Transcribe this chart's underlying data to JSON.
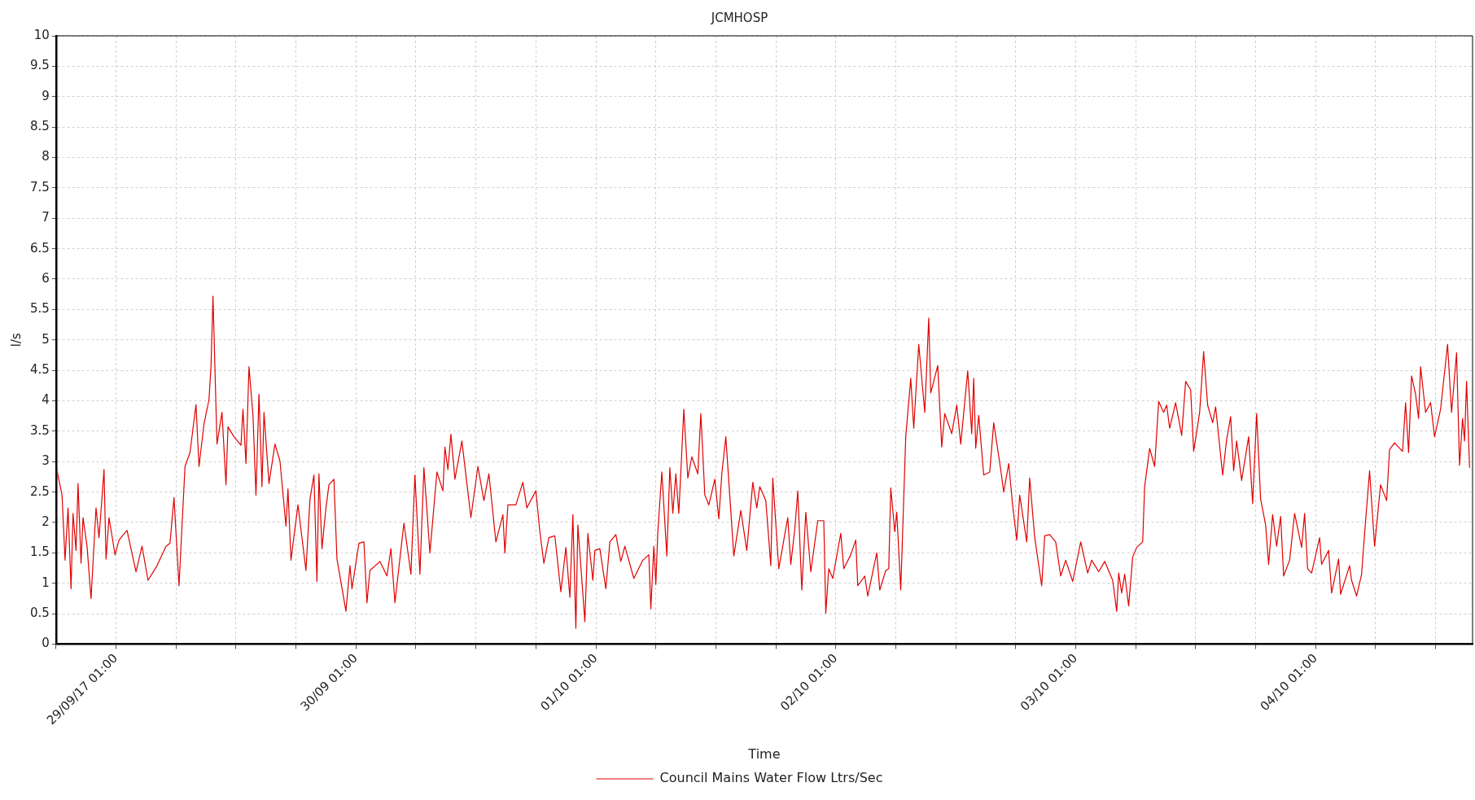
{
  "chart_data": {
    "type": "line",
    "title": "JCMHOSP",
    "xlabel": "Time",
    "ylabel": "l/s",
    "xlim": [
      "--09-28T19:00",
      "--10-04T16:42"
    ],
    "ylim": [
      0,
      10
    ],
    "xticks": [
      {
        "value": "--09-28T19:00",
        "label": null
      },
      {
        "value": "--09-29T01:00",
        "label": "29/09/17 01:00"
      },
      {
        "value": "--09-29T07:00",
        "label": null
      },
      {
        "value": "--09-29T13:00",
        "label": null
      },
      {
        "value": "--09-29T19:00",
        "label": null
      },
      {
        "value": "--09-30T01:00",
        "label": "30/09 01:00"
      },
      {
        "value": "--09-30T07:00",
        "label": null
      },
      {
        "value": "--09-30T13:00",
        "label": null
      },
      {
        "value": "--09-30T19:00",
        "label": null
      },
      {
        "value": "--10-01T01:00",
        "label": "01/10 01:00"
      },
      {
        "value": "--10-01T07:00",
        "label": null
      },
      {
        "value": "--10-01T13:00",
        "label": null
      },
      {
        "value": "--10-01T19:00",
        "label": null
      },
      {
        "value": "--10-02T01:00",
        "label": "02/10 01:00"
      },
      {
        "value": "--10-02T07:00",
        "label": null
      },
      {
        "value": "--10-02T13:00",
        "label": null
      },
      {
        "value": "--10-02T19:00",
        "label": null
      },
      {
        "value": "--10-03T01:00",
        "label": "03/10 01:00"
      },
      {
        "value": "--10-03T07:00",
        "label": null
      },
      {
        "value": "--10-03T13:00",
        "label": null
      },
      {
        "value": "--10-03T19:00",
        "label": null
      },
      {
        "value": "--10-04T01:00",
        "label": "04/10 01:00"
      },
      {
        "value": "--10-04T07:00",
        "label": null
      },
      {
        "value": "--10-04T13:00",
        "label": null
      }
    ],
    "yticks": [
      0,
      0.5,
      1,
      1.5,
      2,
      2.5,
      3,
      3.5,
      4,
      4.5,
      5,
      5.5,
      6,
      6.5,
      7,
      7.5,
      8,
      8.5,
      9,
      9.5,
      10
    ],
    "grid": true,
    "legend": "bottom",
    "series": [
      {
        "name": "Council Mains Water Flow Ltrs/Sec",
        "color": "#e00000",
        "x": [
          "--09-28T19:06",
          "--09-28T19:36",
          "--09-28T19:54",
          "--09-28T20:12",
          "--09-28T20:30",
          "--09-28T20:42",
          "--09-28T21:00",
          "--09-28T21:12",
          "--09-28T21:30",
          "--09-28T21:42",
          "--09-28T22:06",
          "--09-28T22:30",
          "--09-28T23:00",
          "--09-28T23:18",
          "--09-28T23:48",
          "--09-29T00:00",
          "--09-29T00:18",
          "--09-29T00:54",
          "--09-29T01:18",
          "--09-29T02:06",
          "--09-29T03:00",
          "--09-29T03:36",
          "--09-29T04:12",
          "--09-29T05:06",
          "--09-29T06:00",
          "--09-29T06:24",
          "--09-29T06:48",
          "--09-29T07:18",
          "--09-29T07:54",
          "--09-29T08:24",
          "--09-29T09:00",
          "--09-29T09:18",
          "--09-29T09:48",
          "--09-29T10:18",
          "--09-29T10:30",
          "--09-29T10:42",
          "--09-29T11:06",
          "--09-29T11:36",
          "--09-29T12:00",
          "--09-29T12:12",
          "--09-29T12:48",
          "--09-29T13:30",
          "--09-29T13:42",
          "--09-29T14:00",
          "--09-29T14:18",
          "--09-29T14:42",
          "--09-29T15:00",
          "--09-29T15:18",
          "--09-29T15:36",
          "--09-29T15:48",
          "--09-29T16:18",
          "--09-29T16:54",
          "--09-29T17:24",
          "--09-29T18:00",
          "--09-29T18:12",
          "--09-29T18:30",
          "--09-29T19:12",
          "--09-29T20:00",
          "--09-29T20:24",
          "--09-29T20:48",
          "--09-29T21:06",
          "--09-29T21:18",
          "--09-29T21:36",
          "--09-29T22:00",
          "--09-29T22:18",
          "--09-29T22:48",
          "--09-29T23:06",
          "--09-30T00:00",
          "--09-30T00:24",
          "--09-30T00:36",
          "--09-30T01:18",
          "--09-30T01:48",
          "--09-30T02:06",
          "--09-30T02:24",
          "--09-30T03:24",
          "--09-30T04:06",
          "--09-30T04:30",
          "--09-30T04:54",
          "--09-30T05:48",
          "--09-30T06:30",
          "--09-30T06:54",
          "--09-30T07:24",
          "--09-30T07:48",
          "--09-30T08:24",
          "--09-30T09:06",
          "--09-30T09:42",
          "--09-30T09:54",
          "--09-30T10:12",
          "--09-30T10:30",
          "--09-30T10:54",
          "--09-30T11:36",
          "--09-30T12:30",
          "--09-30T13:12",
          "--09-30T13:48",
          "--09-30T14:18",
          "--09-30T15:00",
          "--09-30T15:42",
          "--09-30T15:54",
          "--09-30T16:12",
          "--09-30T17:00",
          "--09-30T17:42",
          "--09-30T18:06",
          "--09-30T19:00",
          "--09-30T19:24",
          "--09-30T19:48",
          "--09-30T20:18",
          "--09-30T20:54",
          "--09-30T21:30",
          "--09-30T22:00",
          "--09-30T22:24",
          "--09-30T22:42",
          "--09-30T23:00",
          "--09-30T23:12",
          "--09-30T23:54",
          "--10-01T00:12",
          "--10-01T00:42",
          "--10-01T00:54",
          "--10-01T01:24",
          "--10-01T02:00",
          "--10-01T02:24",
          "--10-01T03:00",
          "--10-01T03:30",
          "--10-01T03:54",
          "--10-01T04:48",
          "--10-01T05:42",
          "--10-01T06:18",
          "--10-01T06:30",
          "--10-01T06:48",
          "--10-01T07:00",
          "--10-01T07:12",
          "--10-01T07:36",
          "--10-01T08:06",
          "--10-01T08:24",
          "--10-01T08:42",
          "--10-01T09:00",
          "--10-01T09:18",
          "--10-01T09:48",
          "--10-01T10:12",
          "--10-01T10:36",
          "--10-01T11:12",
          "--10-01T11:30",
          "--10-01T11:54",
          "--10-01T12:18",
          "--10-01T12:54",
          "--10-01T13:18",
          "--10-01T13:36",
          "--10-01T14:00",
          "--10-01T14:48",
          "--10-01T15:30",
          "--10-01T16:06",
          "--10-01T16:42",
          "--10-01T17:06",
          "--10-01T17:24",
          "--10-01T18:00",
          "--10-01T18:30",
          "--10-01T18:42",
          "--10-01T19:18",
          "--10-01T19:48",
          "--10-01T20:12",
          "--10-01T20:30",
          "--10-01T20:54",
          "--10-01T21:12",
          "--10-01T21:36",
          "--10-01T22:00",
          "--10-01T22:30",
          "--10-01T23:12",
          "--10-01T23:48",
          "--10-02T00:00",
          "--10-02T00:18",
          "--10-02T00:42",
          "--10-02T01:30",
          "--10-02T01:48",
          "--10-02T02:30",
          "--10-02T03:00",
          "--10-02T03:12",
          "--10-02T03:54",
          "--10-02T04:12",
          "--10-02T05:06",
          "--10-02T05:24",
          "--10-02T06:00",
          "--10-02T06:18",
          "--10-02T06:30",
          "--10-02T06:54",
          "--10-02T07:06",
          "--10-02T07:30",
          "--10-02T08:00",
          "--10-02T08:30",
          "--10-02T08:48",
          "--10-02T09:18",
          "--10-02T09:54",
          "--10-02T10:18",
          "--10-02T10:30",
          "--10-02T11:12",
          "--10-02T11:36",
          "--10-02T11:54",
          "--10-02T12:36",
          "--10-02T13:06",
          "--10-02T13:30",
          "--10-02T14:12",
          "--10-02T14:36",
          "--10-02T14:48",
          "--10-02T15:00",
          "--10-02T15:18",
          "--10-02T15:48",
          "--10-02T16:24",
          "--10-02T16:48",
          "--10-02T17:30",
          "--10-02T17:48",
          "--10-02T18:18",
          "--10-02T18:42",
          "--10-02T19:06",
          "--10-02T19:24",
          "--10-02T20:06",
          "--10-02T20:24",
          "--10-02T20:54",
          "--10-02T21:36",
          "--10-02T21:54",
          "--10-02T22:24",
          "--10-02T23:00",
          "--10-02T23:30",
          "--10-03T00:00",
          "--10-03T00:42",
          "--10-03T01:30",
          "--10-03T02:12",
          "--10-03T02:36",
          "--10-03T03:18",
          "--10-03T03:54",
          "--10-03T04:42",
          "--10-03T05:06",
          "--10-03T05:18",
          "--10-03T05:36",
          "--10-03T05:54",
          "--10-03T06:18",
          "--10-03T06:42",
          "--10-03T07:06",
          "--10-03T07:42",
          "--10-03T07:54",
          "--10-03T08:24",
          "--10-03T08:54",
          "--10-03T09:18",
          "--10-03T09:48",
          "--10-03T10:06",
          "--10-03T10:24",
          "--10-03T11:00",
          "--10-03T11:36",
          "--10-03T12:00",
          "--10-03T12:30",
          "--10-03T12:48",
          "--10-03T13:24",
          "--10-03T13:48",
          "--10-03T14:12",
          "--10-03T14:42",
          "--10-03T15:00",
          "--10-03T15:42",
          "--10-03T16:06",
          "--10-03T16:30",
          "--10-03T16:48",
          "--10-03T17:06",
          "--10-03T17:36",
          "--10-03T18:18",
          "--10-03T18:42",
          "--10-03T19:06",
          "--10-03T19:30",
          "--10-03T20:00",
          "--10-03T20:18",
          "--10-03T20:42",
          "--10-03T21:06",
          "--10-03T21:30",
          "--10-03T21:48",
          "--10-03T22:24",
          "--10-03T22:54",
          "--10-03T23:36",
          "--10-03T23:54",
          "--10-04T00:12",
          "--10-04T00:36",
          "--10-04T01:24",
          "--10-04T01:36",
          "--10-04T02:18",
          "--10-04T02:36",
          "--10-04T03:18",
          "--10-04T03:30",
          "--10-04T04:24",
          "--10-04T04:36",
          "--10-04T05:06",
          "--10-04T05:36",
          "--10-04T05:54",
          "--10-04T06:24",
          "--10-04T06:54",
          "--10-04T07:30",
          "--10-04T08:06",
          "--10-04T08:24",
          "--10-04T08:54",
          "--10-04T09:42",
          "--10-04T10:00",
          "--10-04T10:18",
          "--10-04T10:36",
          "--10-04T11:00",
          "--10-04T11:18",
          "--10-04T11:30",
          "--10-04T12:00",
          "--10-04T12:30",
          "--10-04T12:54",
          "--10-04T13:30",
          "--10-04T14:12",
          "--10-04T14:36",
          "--10-04T15:06",
          "--10-04T15:24",
          "--10-04T15:42",
          "--10-04T15:54",
          "--10-04T16:06",
          "--10-04T16:24"
        ],
        "values": [
          2.85,
          2.45,
          1.38,
          2.24,
          0.91,
          2.15,
          1.54,
          2.64,
          1.33,
          2.08,
          1.61,
          0.75,
          2.24,
          1.75,
          2.87,
          1.4,
          2.08,
          1.47,
          1.71,
          1.87,
          1.19,
          1.61,
          1.05,
          1.29,
          1.61,
          1.66,
          2.41,
          0.96,
          2.92,
          3.15,
          3.94,
          2.92,
          3.62,
          4.02,
          4.56,
          5.72,
          3.29,
          3.81,
          2.62,
          3.57,
          3.41,
          3.27,
          3.86,
          2.97,
          4.56,
          3.76,
          2.45,
          4.11,
          2.59,
          3.81,
          2.64,
          3.29,
          3.01,
          1.94,
          2.55,
          1.38,
          2.29,
          1.21,
          2.38,
          2.78,
          1.03,
          2.8,
          1.57,
          2.24,
          2.62,
          2.71,
          1.4,
          0.54,
          1.29,
          0.91,
          1.66,
          1.68,
          0.68,
          1.21,
          1.36,
          1.12,
          1.57,
          0.68,
          1.99,
          1.15,
          2.78,
          1.15,
          2.9,
          1.5,
          2.83,
          2.52,
          3.24,
          2.87,
          3.45,
          2.71,
          3.34,
          2.08,
          2.92,
          2.36,
          2.8,
          1.68,
          2.13,
          1.5,
          2.29,
          2.29,
          2.66,
          2.24,
          2.52,
          1.85,
          1.33,
          1.75,
          1.78,
          0.86,
          1.59,
          0.77,
          2.13,
          0.26,
          1.96,
          0.37,
          1.82,
          1.05,
          1.54,
          1.57,
          0.91,
          1.68,
          1.8,
          1.36,
          1.61,
          1.08,
          1.38,
          1.47,
          0.58,
          1.61,
          0.98,
          1.85,
          2.83,
          1.45,
          2.9,
          2.15,
          2.8,
          2.15,
          3.86,
          2.73,
          3.08,
          2.8,
          3.79,
          2.45,
          2.29,
          2.71,
          2.06,
          2.8,
          3.41,
          1.45,
          2.2,
          1.54,
          2.66,
          2.24,
          2.59,
          2.36,
          1.29,
          2.73,
          1.24,
          1.71,
          2.08,
          1.31,
          1.89,
          2.52,
          0.89,
          2.17,
          1.19,
          2.03,
          2.03,
          0.51,
          1.24,
          1.08,
          1.82,
          1.24,
          1.47,
          1.71,
          0.96,
          1.12,
          0.79,
          1.5,
          0.89,
          1.21,
          1.24,
          2.57,
          1.85,
          2.17,
          0.89,
          3.41,
          4.37,
          3.55,
          4.93,
          3.81,
          5.36,
          4.13,
          4.58,
          3.24,
          3.79,
          3.46,
          3.93,
          3.29,
          4.49,
          3.46,
          4.37,
          3.22,
          3.76,
          2.78,
          2.83,
          3.64,
          2.87,
          2.5,
          2.97,
          2.27,
          1.71,
          2.45,
          1.68,
          2.73,
          1.75,
          0.96,
          1.78,
          1.8,
          1.68,
          1.12,
          1.38,
          1.03,
          1.68,
          1.17,
          1.38,
          1.19,
          1.36,
          1.05,
          0.54,
          1.17,
          0.84,
          1.15,
          0.63,
          1.43,
          1.59,
          1.68,
          2.59,
          3.22,
          2.92,
          3.99,
          3.81,
          3.93,
          3.55,
          3.97,
          3.43,
          4.32,
          4.18,
          3.17,
          3.81,
          4.81,
          3.93,
          3.64,
          3.9,
          2.78,
          3.36,
          3.74,
          2.85,
          3.34,
          2.69,
          3.41,
          2.31,
          3.79,
          2.38,
          1.96,
          1.31,
          2.13,
          1.61,
          2.1,
          1.12,
          1.38,
          2.15,
          1.59,
          2.15,
          1.24,
          1.17,
          1.75,
          1.31,
          1.54,
          0.84,
          1.4,
          0.82,
          1.29,
          1.05,
          0.79,
          1.15,
          1.82,
          2.85,
          1.61,
          2.62,
          2.36,
          3.2,
          3.31,
          3.17,
          3.97,
          3.15,
          4.41,
          4.11,
          3.71,
          4.56,
          3.81,
          3.97,
          3.41,
          3.86,
          4.93,
          3.81,
          4.79,
          2.94,
          3.71,
          3.34,
          4.32,
          2.9
        ]
      }
    ]
  }
}
